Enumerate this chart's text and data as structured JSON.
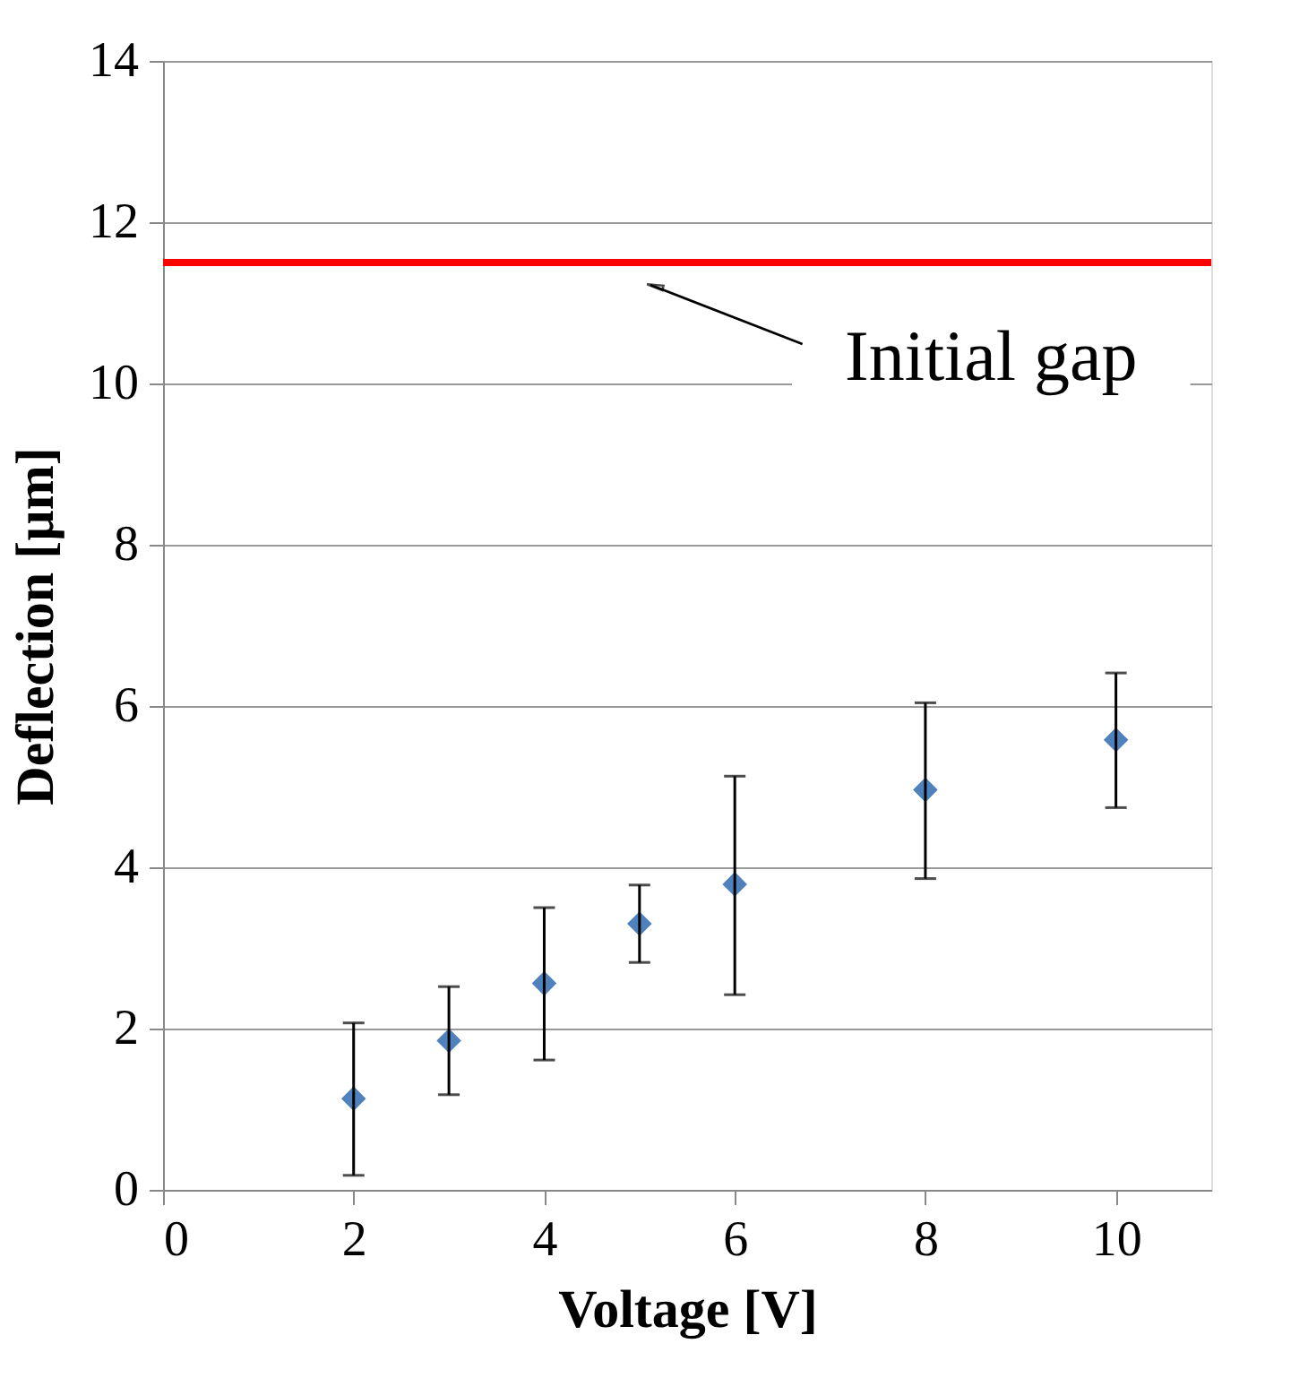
{
  "chart_data": {
    "type": "scatter",
    "xlabel": "Voltage [V]",
    "ylabel": "Deflection [µm]",
    "x": [
      2,
      3,
      4,
      5,
      6,
      8,
      10
    ],
    "series": [
      {
        "color": "#4f81bd",
        "values": [
          1.13,
          1.85,
          2.56,
          3.3,
          3.79,
          4.96,
          5.58
        ],
        "errors": [
          [
            0.18,
            2.07
          ],
          [
            1.18,
            2.52
          ],
          [
            1.61,
            3.5
          ],
          [
            2.82,
            3.78
          ],
          [
            2.42,
            5.13
          ],
          [
            3.86,
            6.04
          ],
          [
            4.74,
            6.41
          ]
        ]
      }
    ],
    "marker": "diamond",
    "xlim": [
      0,
      11
    ],
    "xticks": [
      0,
      2,
      4,
      6,
      8,
      10
    ],
    "ylim": [
      0,
      14
    ],
    "yticks": [
      0,
      2,
      4,
      6,
      8,
      10,
      12,
      14
    ],
    "grid": "y",
    "ref_lines": [
      {
        "axis": "y",
        "value": 11.5,
        "label": "Initial gap",
        "color": "#ff0000",
        "line_style": "solid"
      }
    ]
  }
}
